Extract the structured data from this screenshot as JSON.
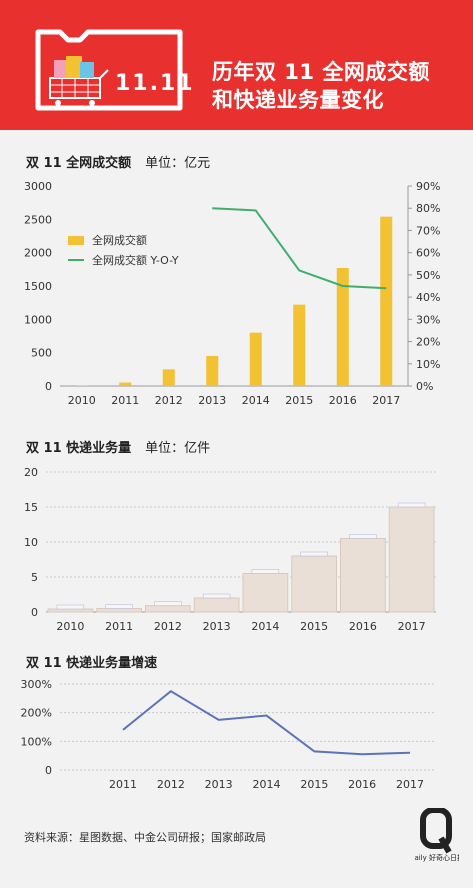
{
  "header": {
    "title_line1": "历年双 11 全网成交额",
    "title_line2": "和快递业务量变化",
    "badge_text": "11.11"
  },
  "sections": {
    "gmv_title": "双 11 全网成交额",
    "gmv_unit": "单位：亿元",
    "express_title": "双 11 快递业务量",
    "express_unit": "单位：亿件",
    "growth_title": "双 11 快递业务量增速"
  },
  "footer": {
    "source": "资料来源：星图数据、中金公司研报；国家邮政局",
    "logo_sub": "daily 好奇心日报"
  },
  "colors": {
    "header_bg": "#e8312f",
    "bar_gold": "#f2c232",
    "line_green": "#3fae6b",
    "line_blue": "#5b73b8",
    "box_beige": "#e9dfd6"
  },
  "chart_data": [
    {
      "type": "bar",
      "title": "双 11 全网成交额",
      "categories": [
        "2010",
        "2011",
        "2012",
        "2013",
        "2014",
        "2015",
        "2016",
        "2017"
      ],
      "series": [
        {
          "name": "全网成交额",
          "axis": "left",
          "values": [
            9,
            52,
            250,
            450,
            800,
            1220,
            1770,
            2540
          ]
        },
        {
          "name": "全网成交额 Y-O-Y",
          "axis": "right",
          "type": "line",
          "values": [
            null,
            null,
            null,
            80,
            79,
            52,
            45,
            44
          ]
        }
      ],
      "ylim_left": [
        0,
        3000
      ],
      "yticks_left": [
        "0",
        "500",
        "1000",
        "1500",
        "2000",
        "2500",
        "3000"
      ],
      "ylim_right": [
        0,
        90
      ],
      "yticks_right": [
        "0%",
        "10%",
        "20%",
        "30%",
        "40%",
        "50%",
        "60%",
        "70%",
        "80%",
        "90%"
      ],
      "legend": "top-left"
    },
    {
      "type": "bar",
      "title": "双 11 快递业务量",
      "categories": [
        "2010",
        "2011",
        "2012",
        "2013",
        "2014",
        "2015",
        "2016",
        "2017"
      ],
      "values": [
        0.3,
        0.5,
        0.9,
        2.0,
        5.5,
        8.0,
        10.5,
        15.0
      ],
      "ylim": [
        0,
        20
      ],
      "yticks": [
        "0",
        "5",
        "10",
        "15",
        "20"
      ]
    },
    {
      "type": "line",
      "title": "双 11 快递业务量增速",
      "categories": [
        "2011",
        "2012",
        "2013",
        "2014",
        "2015",
        "2016",
        "2017"
      ],
      "values": [
        140,
        275,
        175,
        190,
        65,
        55,
        60
      ],
      "ylim": [
        0,
        300
      ],
      "yticks": [
        "0",
        "100%",
        "200%",
        "300%"
      ]
    }
  ]
}
